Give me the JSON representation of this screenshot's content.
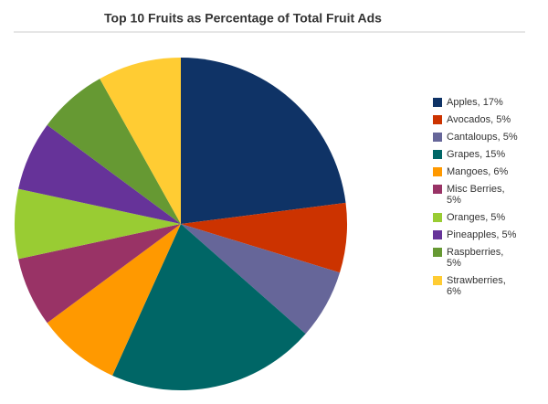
{
  "chart_data": {
    "type": "pie",
    "title": "Top 10 Fruits as Percentage of Total Fruit Ads",
    "categories": [
      "Apples, 17%",
      "Avocados, 5%",
      "Cantaloups, 5%",
      "Grapes, 15%",
      "Mangoes, 6%",
      "Misc Berries, 5%",
      "Oranges, 5%",
      "Pineapples, 5%",
      "Raspberries, 5%",
      "Strawberries, 6%"
    ],
    "values": [
      17,
      5,
      5,
      15,
      6,
      5,
      5,
      5,
      5,
      6
    ],
    "colors": [
      "#0f3366",
      "#cc3300",
      "#666699",
      "#006666",
      "#ff9900",
      "#993366",
      "#99cc33",
      "#663399",
      "#669933",
      "#ffcc33"
    ],
    "legend": "right"
  }
}
